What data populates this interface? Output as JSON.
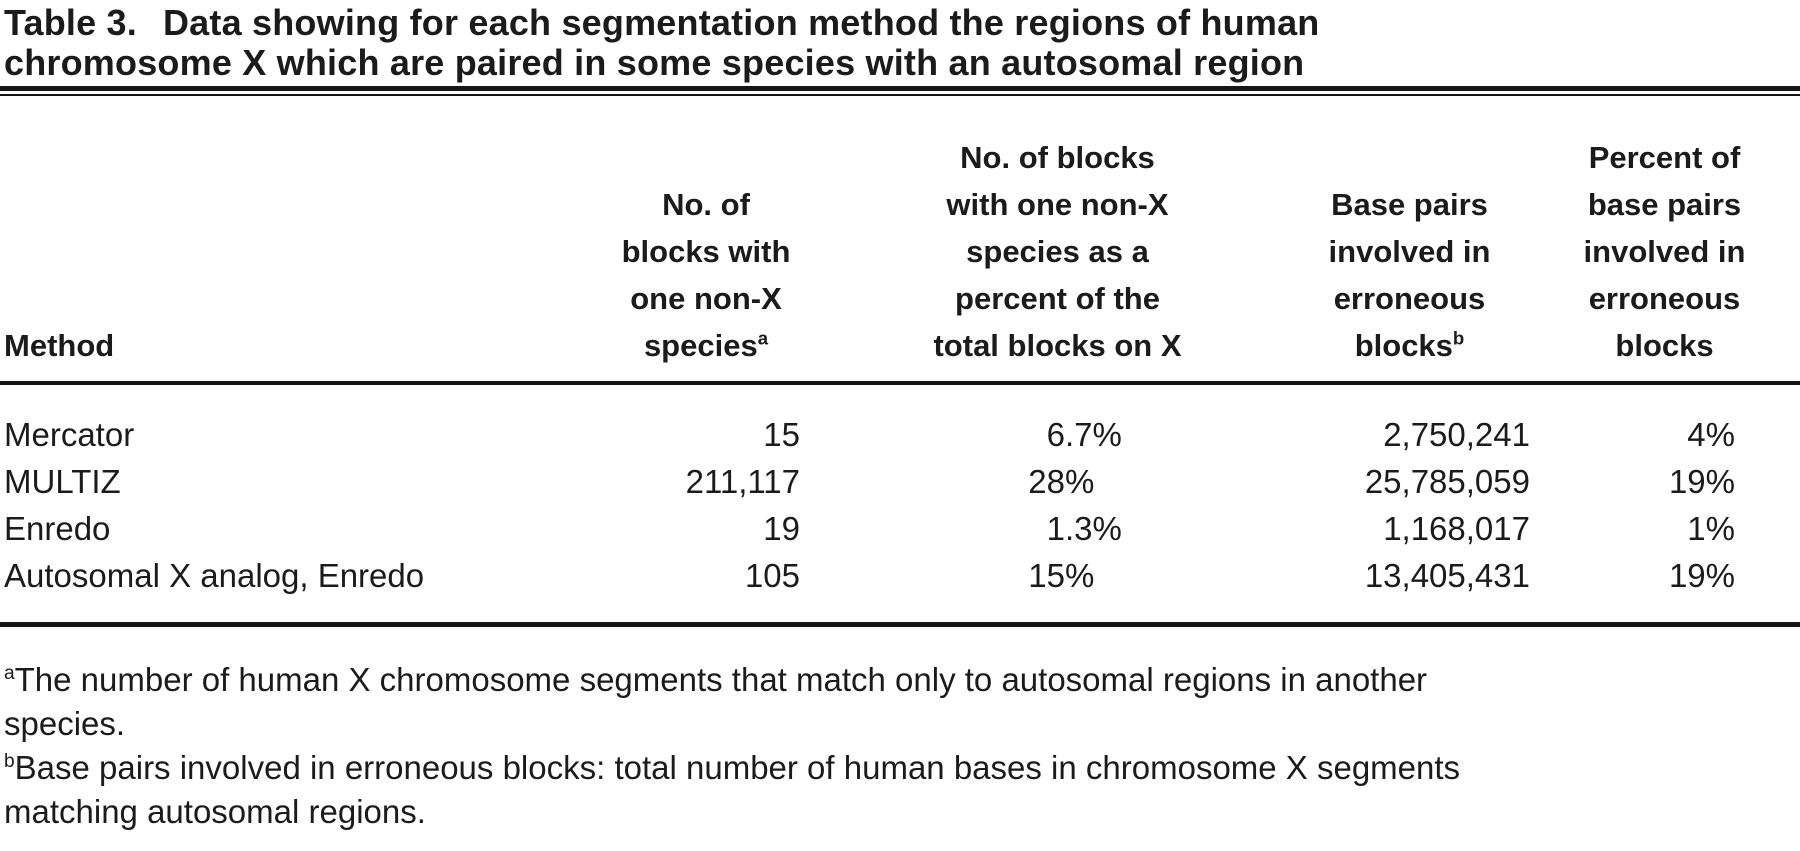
{
  "title": {
    "label": "Table 3.",
    "text": "Data showing for each segmentation method the regions of human\nchromosome X which are paired in some species with an autosomal region"
  },
  "table": {
    "headers": {
      "method": "Method",
      "blocks_non_x": {
        "text": "No. of\nblocks with\none non-X\nspecies",
        "sup": "a"
      },
      "blocks_pct": {
        "text": "No. of blocks\nwith one non-X\nspecies as a\npercent of the\ntotal blocks on X"
      },
      "base_pairs": {
        "text": "Base pairs\ninvolved in\nerroneous\nblocks",
        "sup": "b"
      },
      "base_pairs_pct": {
        "text": "Percent of\nbase pairs\ninvolved in\nerroneous\nblocks"
      }
    },
    "rows": [
      {
        "method": "Mercator",
        "blocks_non_x": "15",
        "blocks_pct": "6.7%",
        "pct_int": "6",
        "pct_frac": ".7%",
        "base_pairs": "2,750,241",
        "base_pairs_pct": "4%"
      },
      {
        "method": "MULTIZ",
        "blocks_non_x": "211,117",
        "blocks_pct": "28%",
        "pct_int": "28",
        "pct_frac": "%",
        "base_pairs": "25,785,059",
        "base_pairs_pct": "19%"
      },
      {
        "method": "Enredo",
        "blocks_non_x": "19",
        "blocks_pct": "1.3%",
        "pct_int": "1",
        "pct_frac": ".3%",
        "base_pairs": "1,168,017",
        "base_pairs_pct": "1%"
      },
      {
        "method": "Autosomal X analog, Enredo",
        "blocks_non_x": "105",
        "blocks_pct": "15%",
        "pct_int": "15",
        "pct_frac": "%",
        "base_pairs": "13,405,431",
        "base_pairs_pct": "19%"
      }
    ]
  },
  "footnotes": [
    {
      "sup": "a",
      "text": "The number of human X chromosome segments that match only to autosomal regions in another\nspecies."
    },
    {
      "sup": "b",
      "text": "Base pairs involved in erroneous blocks: total number of human bases in chromosome X segments\nmatching autosomal regions."
    }
  ],
  "colors": {
    "background": "#ffffff",
    "text": "#1b1b1b",
    "rule": "#161616"
  }
}
